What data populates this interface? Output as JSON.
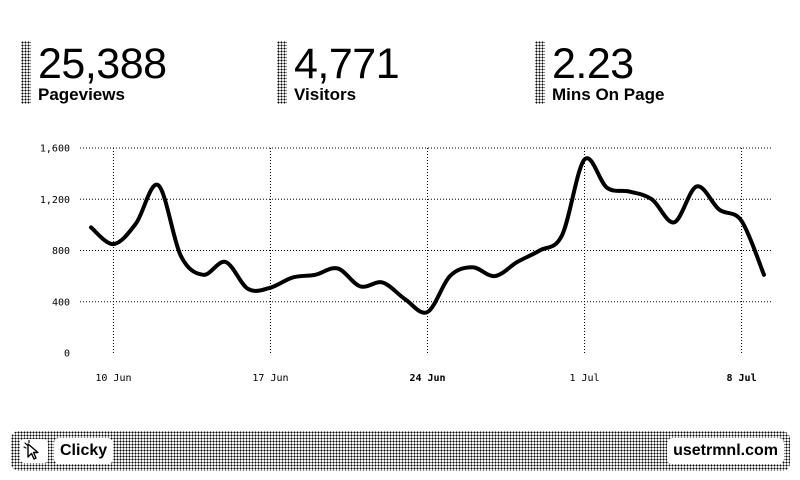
{
  "stats": [
    {
      "value": "25,388",
      "label": "Pageviews"
    },
    {
      "value": "4,771",
      "label": "Visitors"
    },
    {
      "value": "2.23",
      "label": "Mins On Page"
    }
  ],
  "chart_data": {
    "type": "line",
    "title": "",
    "xlabel": "",
    "ylabel": "",
    "ylim": [
      0,
      1600
    ],
    "yticks": [
      0,
      400,
      800,
      1200,
      1600
    ],
    "ytick_labels": [
      "0",
      "400",
      "800",
      "1,200",
      "1,600"
    ],
    "xticks": [
      {
        "date": "2024-06-10",
        "label": "10 Jun",
        "bold": false
      },
      {
        "date": "2024-06-17",
        "label": "17 Jun",
        "bold": false
      },
      {
        "date": "2024-06-24",
        "label": "24 Jun",
        "bold": true
      },
      {
        "date": "2024-07-01",
        "label": "1 Jul",
        "bold": false
      },
      {
        "date": "2024-07-08",
        "label": "8 Jul",
        "bold": true
      }
    ],
    "x_range": [
      "2024-06-09",
      "2024-07-09"
    ],
    "grid": true,
    "series": [
      {
        "x": [
          "2024-06-09",
          "2024-06-10",
          "2024-06-11",
          "2024-06-12",
          "2024-06-13",
          "2024-06-14",
          "2024-06-15",
          "2024-06-16",
          "2024-06-17",
          "2024-06-18",
          "2024-06-19",
          "2024-06-20",
          "2024-06-21",
          "2024-06-22",
          "2024-06-23",
          "2024-06-24",
          "2024-06-25",
          "2024-06-26",
          "2024-06-27",
          "2024-06-28",
          "2024-06-29",
          "2024-06-30",
          "2024-07-01",
          "2024-07-02",
          "2024-07-03",
          "2024-07-04",
          "2024-07-05",
          "2024-07-06",
          "2024-07-07",
          "2024-07-08",
          "2024-07-09"
        ],
        "values": [
          980,
          850,
          1010,
          1310,
          760,
          610,
          710,
          500,
          510,
          590,
          610,
          660,
          520,
          550,
          420,
          320,
          600,
          670,
          600,
          710,
          800,
          920,
          1510,
          1290,
          1260,
          1200,
          1020,
          1300,
          1120,
          1030,
          610
        ]
      }
    ]
  },
  "footer": {
    "app_name": "Clicky",
    "brand": "usetrmnl.com"
  }
}
